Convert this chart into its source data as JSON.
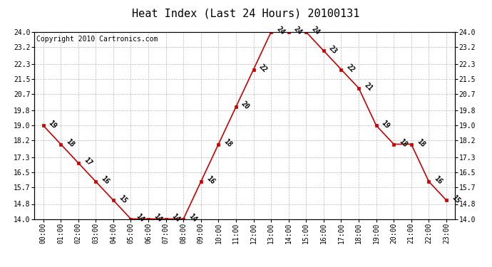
{
  "title": "Heat Index (Last 24 Hours) 20100131",
  "copyright": "Copyright 2010 Cartronics.com",
  "hours": [
    "00:00",
    "01:00",
    "02:00",
    "03:00",
    "04:00",
    "05:00",
    "06:00",
    "07:00",
    "08:00",
    "09:00",
    "10:00",
    "11:00",
    "12:00",
    "13:00",
    "14:00",
    "15:00",
    "16:00",
    "17:00",
    "18:00",
    "19:00",
    "20:00",
    "21:00",
    "22:00",
    "23:00"
  ],
  "values": [
    19,
    18,
    17,
    16,
    15,
    14,
    14,
    14,
    14,
    16,
    18,
    20,
    22,
    24,
    24,
    24,
    23,
    22,
    21,
    19,
    18,
    18,
    16,
    15
  ],
  "ylim_min": 14.0,
  "ylim_max": 24.0,
  "yticks": [
    14.0,
    14.8,
    15.7,
    16.5,
    17.3,
    18.2,
    19.0,
    19.8,
    20.7,
    21.5,
    22.3,
    23.2,
    24.0
  ],
  "line_color": "#cc0000",
  "marker_color": "#cc0000",
  "bg_color": "#ffffff",
  "grid_color": "#bbbbbb",
  "title_fontsize": 11,
  "tick_fontsize": 7,
  "annot_fontsize": 7,
  "copyright_fontsize": 7
}
